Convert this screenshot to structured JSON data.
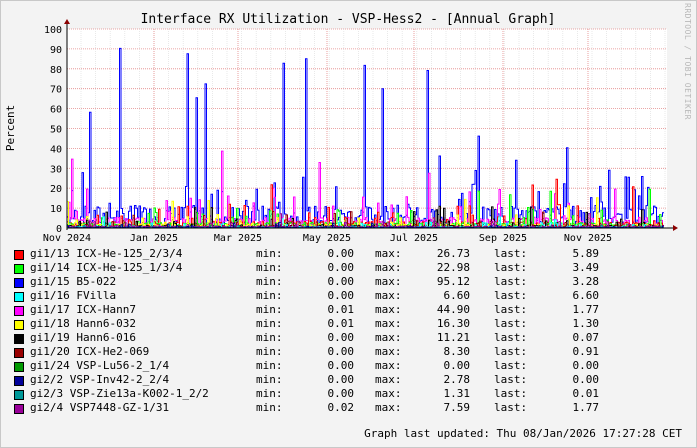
{
  "chart_data": {
    "type": "line",
    "title": "Interface RX Utilization - VSP-Hess2 - [Annual Graph]",
    "ylabel": "Percent",
    "ylim": [
      0,
      100
    ],
    "yticks": [
      0,
      10,
      20,
      30,
      40,
      50,
      60,
      70,
      80,
      90,
      100
    ],
    "xticks": [
      "Nov 2024",
      "Jan 2025",
      "Mar 2025",
      "May 2025",
      "Jul 2025",
      "Sep 2025",
      "Nov 2025"
    ],
    "grid": true,
    "series": [
      {
        "name": "gi1/13 ICX-He-125_2/3/4",
        "color": "#ff0000",
        "min": "0.00",
        "max": "26.73",
        "last": "5.89"
      },
      {
        "name": "gi1/14 ICX-He-125_1/3/4",
        "color": "#00ff00",
        "min": "0.00",
        "max": "22.98",
        "last": "3.49"
      },
      {
        "name": "gi1/15 B5-022",
        "color": "#0000ff",
        "min": "0.00",
        "max": "95.12",
        "last": "3.28"
      },
      {
        "name": "gi1/16 FVilla",
        "color": "#00ffff",
        "min": "0.00",
        "max": "6.60",
        "last": "6.60"
      },
      {
        "name": "gi1/17 ICX-Hann7",
        "color": "#ff00ff",
        "min": "0.01",
        "max": "44.90",
        "last": "1.77"
      },
      {
        "name": "gi1/18 Hann6-032",
        "color": "#ffff00",
        "min": "0.01",
        "max": "16.30",
        "last": "1.30"
      },
      {
        "name": "gi1/19 Hann6-016",
        "color": "#000000",
        "min": "0.00",
        "max": "11.21",
        "last": "0.07"
      },
      {
        "name": "gi1/20 ICX-He2-069",
        "color": "#990000",
        "min": "0.00",
        "max": "8.30",
        "last": "0.91"
      },
      {
        "name": "gi1/24 VSP-Lu56-2_1/4",
        "color": "#009900",
        "min": "0.00",
        "max": "0.00",
        "last": "0.00"
      },
      {
        "name": "gi2/2 VSP-Inv42-2_2/4",
        "color": "#000099",
        "min": "0.00",
        "max": "2.78",
        "last": "0.00"
      },
      {
        "name": "gi2/3 VSP-Zie13a-K002-1_2/2",
        "color": "#009999",
        "min": "0.00",
        "max": "1.31",
        "last": "0.01"
      },
      {
        "name": "gi2/4 VSP7448-GZ-1/31",
        "color": "#990099",
        "min": "0.02",
        "max": "7.59",
        "last": "1.77"
      }
    ]
  },
  "legend": {
    "min_label": "min:",
    "max_label": "max:",
    "last_label": "last:"
  },
  "footer": {
    "updated": "Graph last updated: Thu 08/Jan/2026 17:27:28 CET"
  },
  "watermark": "RRDTOOL / TOBI OETIKER"
}
